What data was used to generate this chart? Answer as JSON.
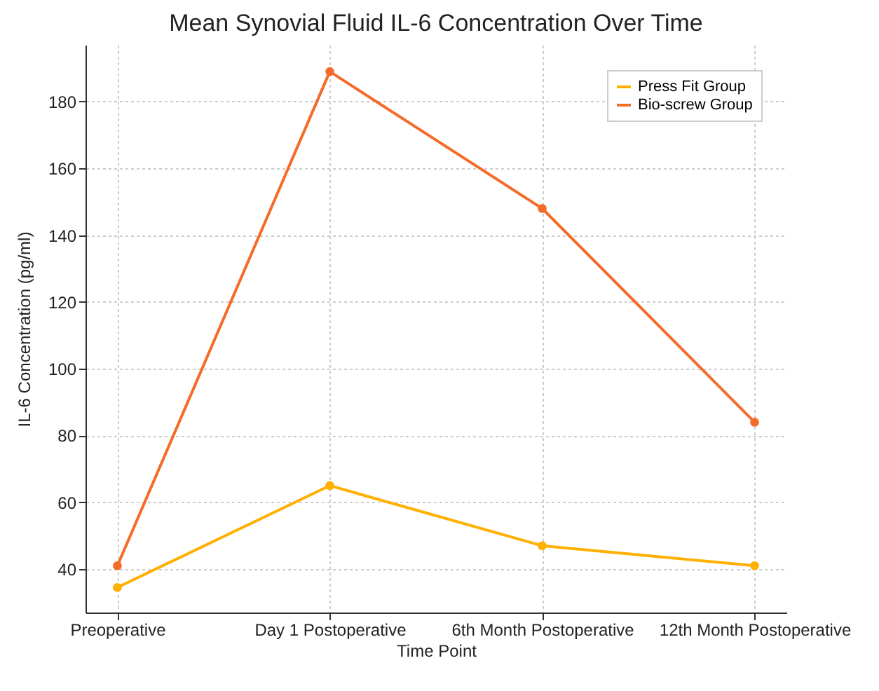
{
  "chart_data": {
    "type": "line",
    "title": "Mean Synovial Fluid IL-6 Concentration Over Time",
    "xlabel": "Time Point",
    "ylabel": "IL-6 Concentration (pg/ml)",
    "categories": [
      "Preoperative",
      "Day 1 Postoperative",
      "6th Month Postoperative",
      "12th Month Postoperative"
    ],
    "series": [
      {
        "name": "Press Fit Group",
        "color": "#ffb000",
        "values": [
          34.5,
          65,
          47,
          41
        ]
      },
      {
        "name": "Bio-screw Group",
        "color": "#f46b2a",
        "values": [
          41,
          189,
          148,
          84
        ]
      }
    ],
    "ylim": [
      27,
      197
    ],
    "yticks": [
      40,
      60,
      80,
      100,
      120,
      140,
      160,
      180
    ],
    "grid": true,
    "legend": "top right",
    "marker": "circle"
  }
}
